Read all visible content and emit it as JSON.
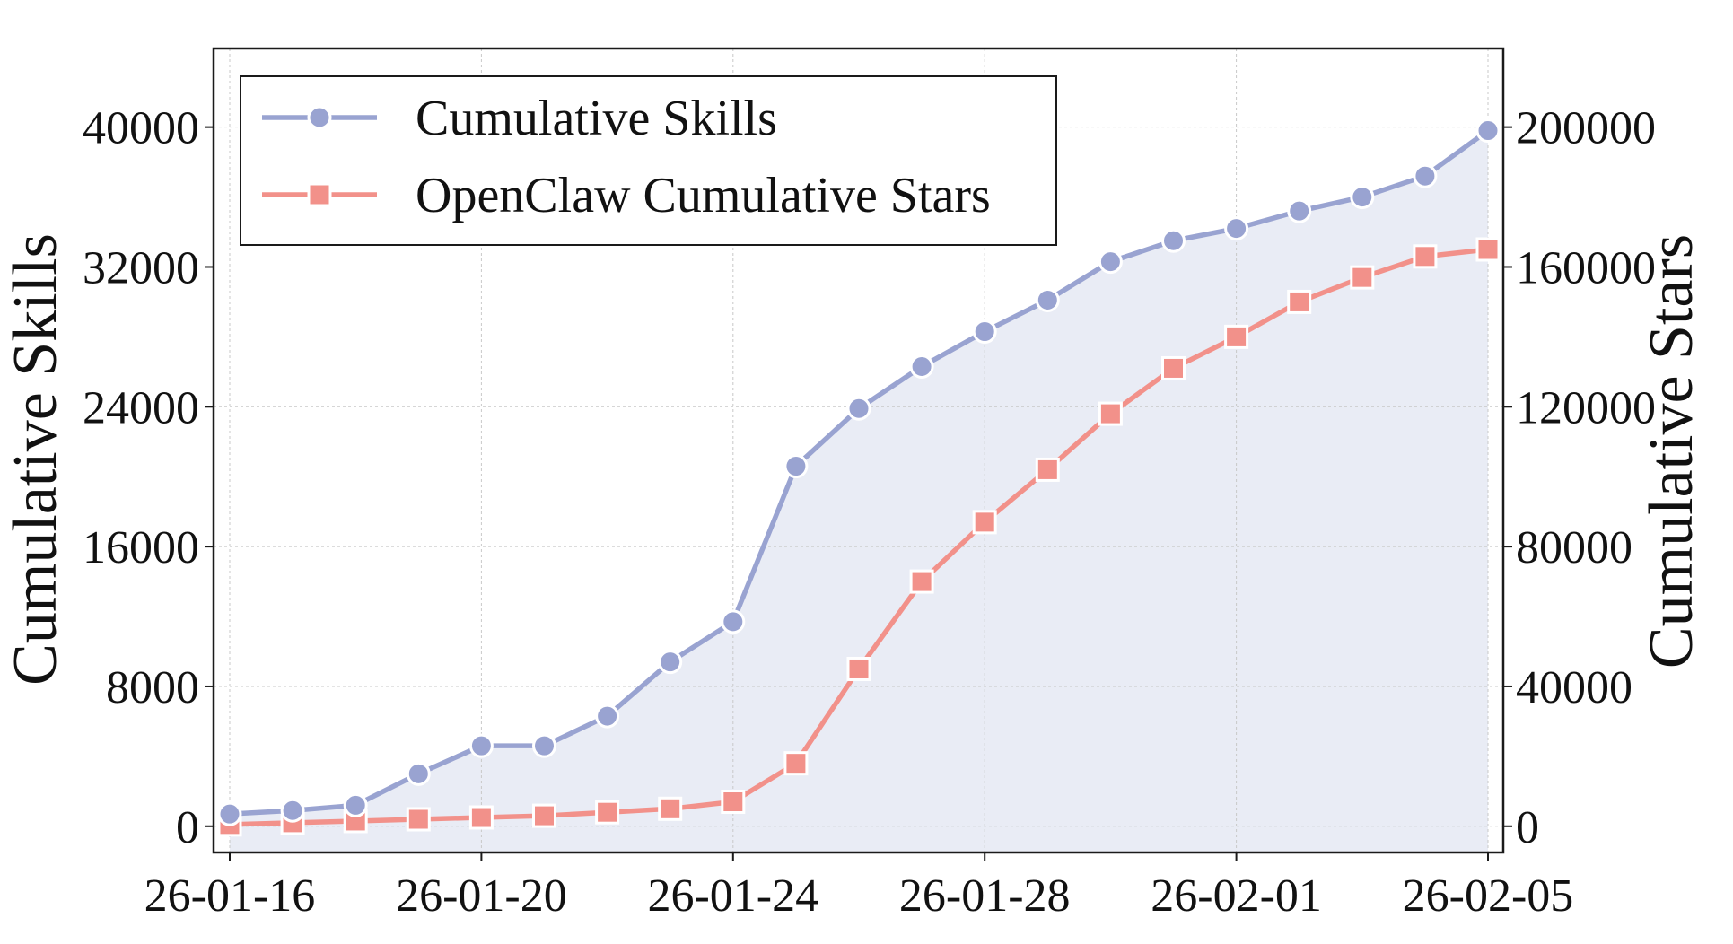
{
  "chart_data": {
    "type": "line",
    "x": [
      "26-01-16",
      "26-01-17",
      "26-01-18",
      "26-01-19",
      "26-01-20",
      "26-01-21",
      "26-01-22",
      "26-01-23",
      "26-01-24",
      "26-01-25",
      "26-01-26",
      "26-01-27",
      "26-01-28",
      "26-01-29",
      "26-01-30",
      "26-01-31",
      "26-02-01",
      "26-02-02",
      "26-02-03",
      "26-02-04",
      "26-02-05"
    ],
    "xticks": [
      "26-01-16",
      "26-01-20",
      "26-01-24",
      "26-01-28",
      "26-02-01",
      "26-02-05"
    ],
    "ylabel": "Cumulative Skills",
    "y2label": "Cumulative Stars",
    "ylim": [
      -1500,
      44500
    ],
    "y2lim": [
      -7500,
      222500
    ],
    "yticks": [
      "0",
      "8000",
      "16000",
      "24000",
      "32000",
      "40000"
    ],
    "y2ticks": [
      "0",
      "40000",
      "80000",
      "120000",
      "160000",
      "200000"
    ],
    "grid": true,
    "legend_position": "top-left",
    "series": [
      {
        "name": "Cumulative Skills",
        "axis": "left",
        "marker": "circle",
        "color": "#99a3d1",
        "fill": "#e9ecf5",
        "values": [
          700,
          900,
          1200,
          3000,
          4600,
          4600,
          6300,
          9400,
          11700,
          20600,
          23900,
          26300,
          28300,
          30100,
          32300,
          33500,
          34200,
          35200,
          36000,
          37200,
          39800
        ]
      },
      {
        "name": "OpenClaw Cumulative Stars",
        "axis": "right",
        "marker": "square",
        "color": "#f2918a",
        "values": [
          500,
          1000,
          1500,
          2000,
          2500,
          3000,
          4000,
          5000,
          7000,
          18000,
          45000,
          70000,
          87000,
          102000,
          118000,
          131000,
          140000,
          150000,
          157000,
          163000,
          165000
        ]
      }
    ]
  }
}
